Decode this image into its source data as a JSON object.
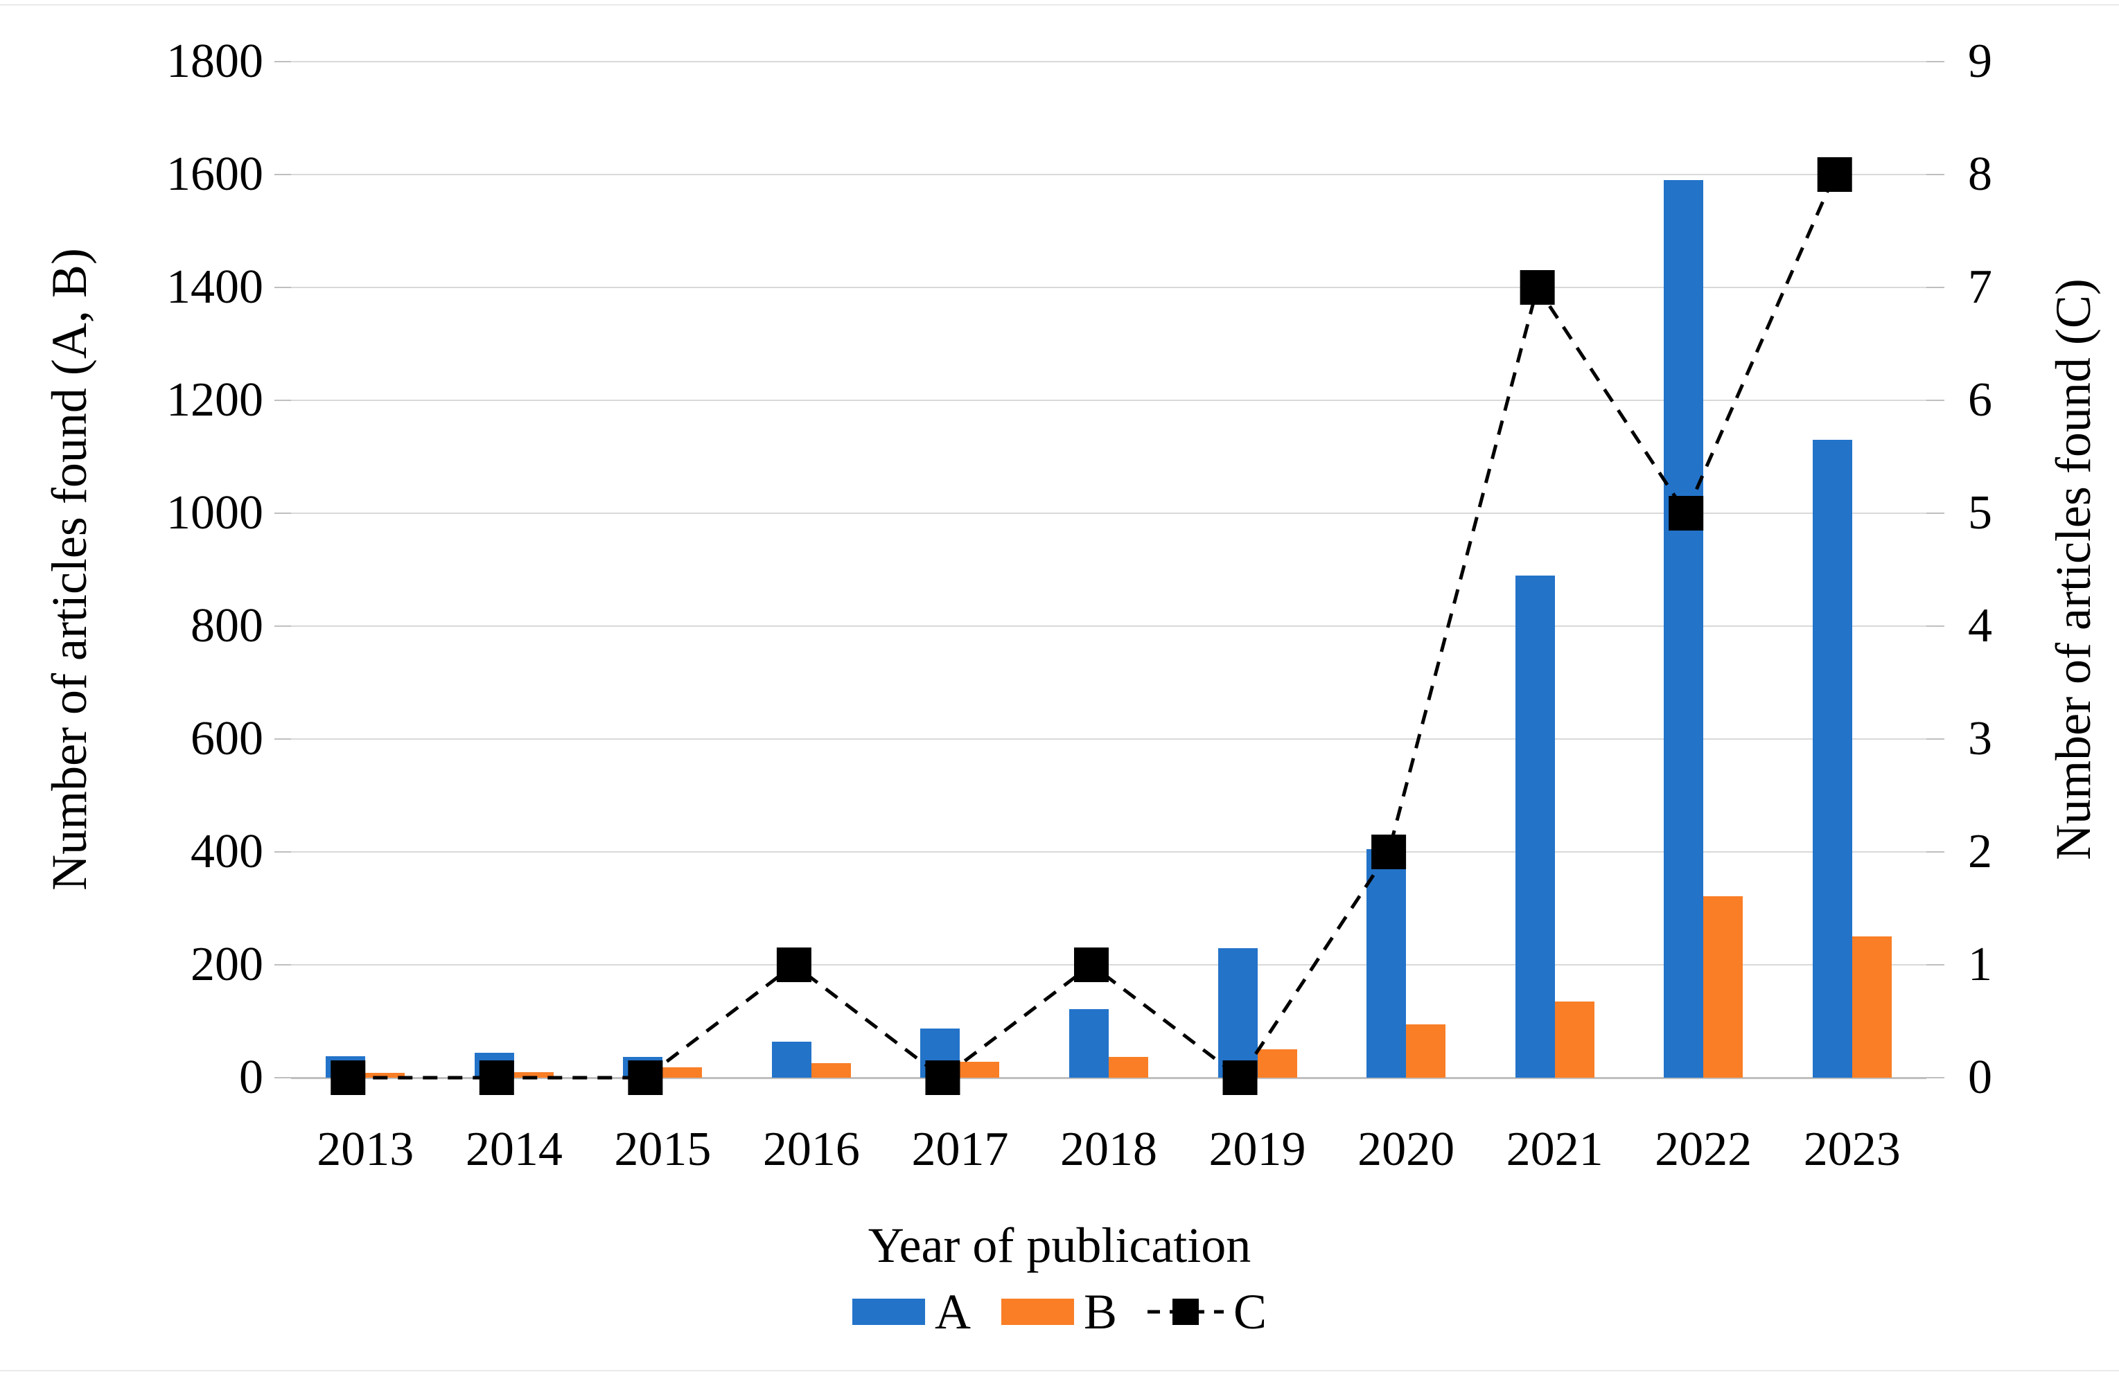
{
  "chart_data": {
    "type": "bar",
    "subtype": "grouped-bars-with-dashed-line-on-secondary-axis",
    "title": "",
    "categories": [
      "2013",
      "2014",
      "2015",
      "2016",
      "2017",
      "2018",
      "2019",
      "2020",
      "2021",
      "2022",
      "2023"
    ],
    "series": [
      {
        "name": "A",
        "type": "bar",
        "axis": "left",
        "color": "#2373C9",
        "values": [
          38,
          44,
          37,
          64,
          87,
          122,
          230,
          405,
          890,
          1590,
          1130
        ]
      },
      {
        "name": "B",
        "type": "bar",
        "axis": "left",
        "color": "#F97E26",
        "values": [
          9,
          10,
          18,
          26,
          28,
          37,
          50,
          95,
          135,
          322,
          250
        ]
      },
      {
        "name": "C",
        "type": "line",
        "axis": "right",
        "color": "#000000",
        "line_style": "dashed",
        "marker": "square",
        "values": [
          0,
          0,
          0,
          1,
          0,
          1,
          0,
          2,
          7,
          5,
          8
        ]
      }
    ],
    "xlabel": "Year of publication",
    "ylabel_left": "Number of articles found (A, B)",
    "ylabel_right": "Number of articles found (C)",
    "y_left": {
      "min": 0,
      "max": 1800,
      "step": 200,
      "ticks": [
        "0",
        "200",
        "400",
        "600",
        "800",
        "1000",
        "1200",
        "1400",
        "1600",
        "1800"
      ]
    },
    "y_right": {
      "min": 0,
      "max": 9,
      "step": 1,
      "ticks": [
        "0",
        "1",
        "2",
        "3",
        "4",
        "5",
        "6",
        "7",
        "8",
        "9"
      ]
    },
    "grid": true,
    "gridline_color": "#D9D9D9",
    "axisline_color": "#BFBFBF",
    "legend_position": "bottom"
  }
}
